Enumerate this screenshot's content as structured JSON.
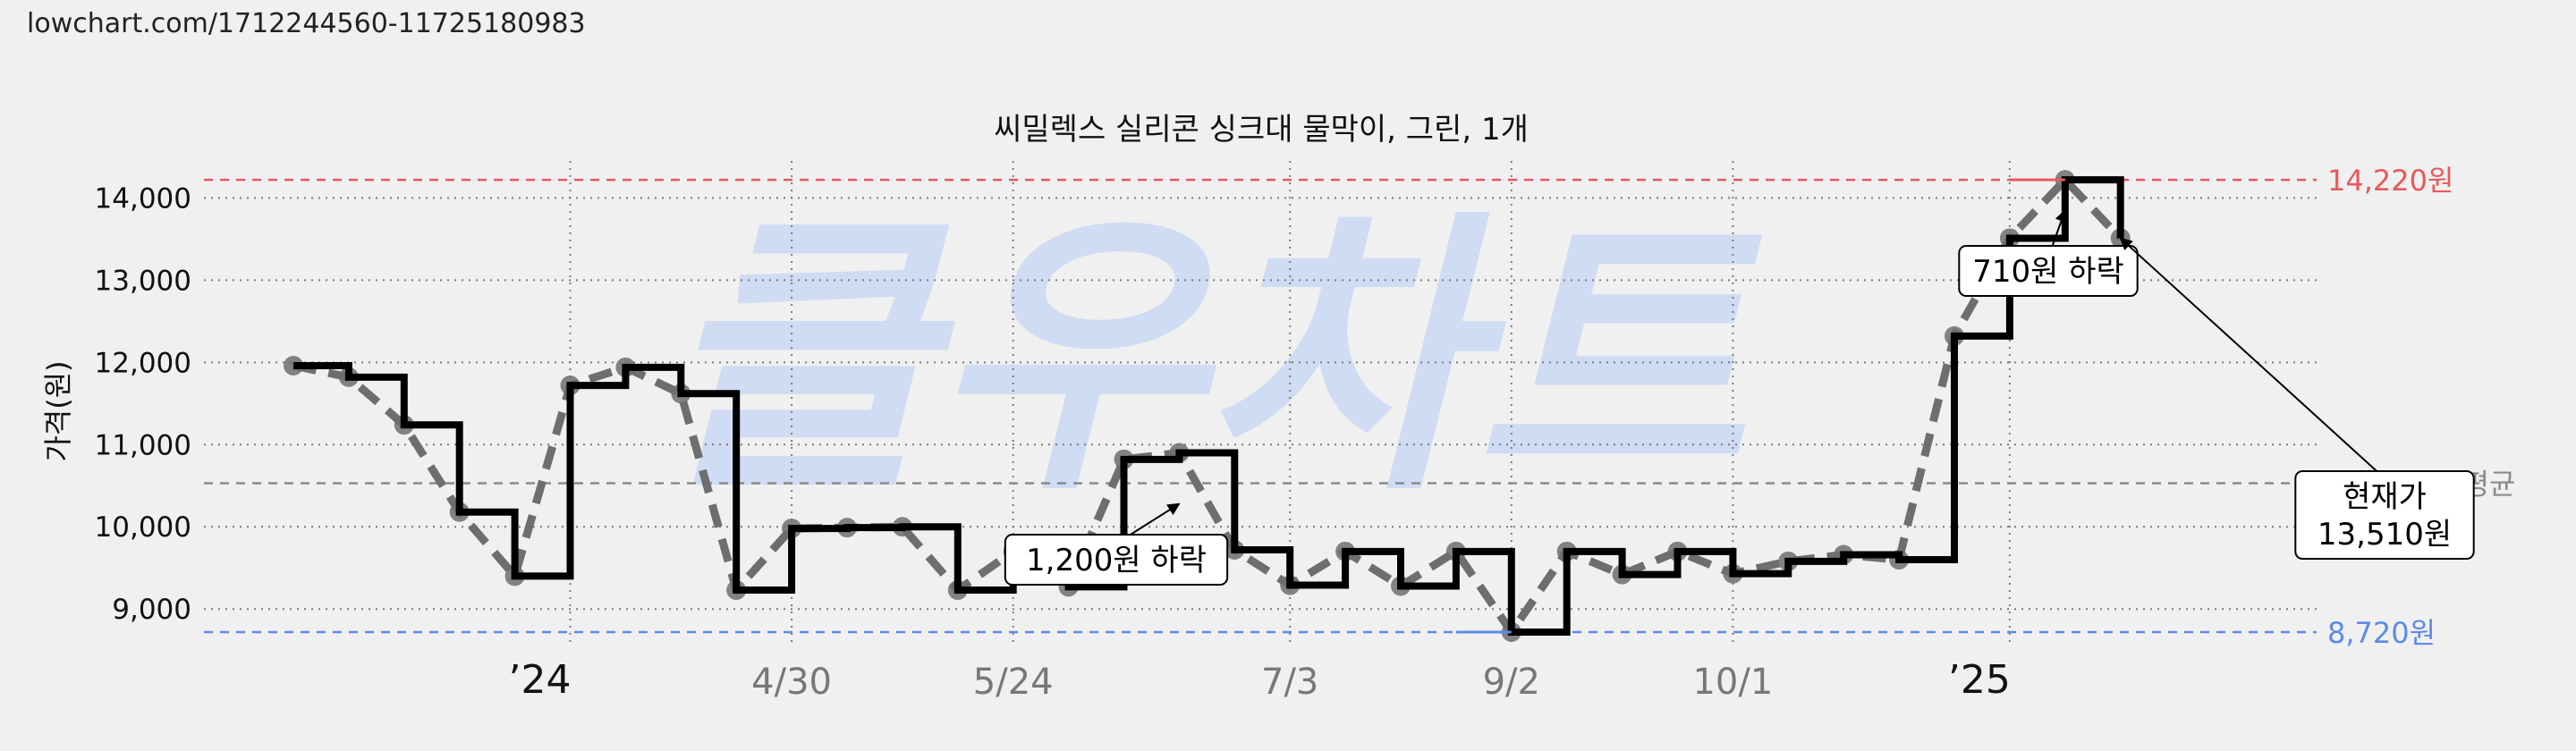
{
  "page": {
    "url_text": "lowchart.com/1712244560-11725180983",
    "watermark": "클우차트"
  },
  "chart_data": {
    "type": "line",
    "title": "씨밀렉스 실리콘 싱크대 물막이, 그린, 1개",
    "ylabel": "가격(원)",
    "xlabel": "",
    "ylim": [
      8600,
      14450
    ],
    "yticks": [
      9000,
      10000,
      11000,
      12000,
      13000,
      14000
    ],
    "ytick_labels": [
      "9,000",
      "10,000",
      "11,000",
      "12,000",
      "13,000",
      "14,000"
    ],
    "xtick_labels": [
      {
        "label": "’24",
        "x": 5,
        "style": "year"
      },
      {
        "label": "4/30",
        "x": 9,
        "style": "date"
      },
      {
        "label": "5/24",
        "x": 13,
        "style": "date"
      },
      {
        "label": "7/3",
        "x": 18,
        "style": "date"
      },
      {
        "label": "9/2",
        "x": 22,
        "style": "date"
      },
      {
        "label": "10/1",
        "x": 26,
        "style": "date"
      },
      {
        "label": "’25",
        "x": 31,
        "style": "year"
      }
    ],
    "grid": true,
    "series": [
      {
        "style": "step",
        "color": "#000000",
        "values": [
          11960,
          11820,
          11240,
          10180,
          9400,
          11720,
          11940,
          11620,
          9230,
          9980,
          9990,
          10000,
          9230,
          9700,
          9270,
          10820,
          10900,
          9720,
          9290,
          9700,
          9280,
          9700,
          8720,
          9700,
          9420,
          9700,
          9430,
          9580,
          9660,
          9600,
          12320,
          13510,
          14220,
          13510
        ]
      },
      {
        "style": "dashed-markers",
        "color": "#6e6e6e",
        "values": [
          11960,
          11820,
          11240,
          10180,
          9400,
          11720,
          11940,
          11620,
          9230,
          9980,
          9990,
          10000,
          9230,
          9700,
          9270,
          10820,
          10900,
          9720,
          9290,
          9700,
          9280,
          9700,
          8720,
          9700,
          9420,
          9700,
          9430,
          9580,
          9660,
          9600,
          12320,
          13510,
          14220,
          13510
        ]
      }
    ],
    "reference_lines": [
      {
        "value": 14220,
        "label": "14,220원",
        "color": "#e8585a",
        "kind": "max"
      },
      {
        "value": 10530,
        "label": "10,530원 평균",
        "color": "#8a8a8a",
        "kind": "avg"
      },
      {
        "value": 8720,
        "label": "8,720원",
        "color": "#5b8be6",
        "kind": "min"
      }
    ],
    "annotations": [
      {
        "lines": [
          "1,200원 하락"
        ],
        "target_index": 16,
        "target_value": 10280
      },
      {
        "lines": [
          "710원 하락"
        ],
        "target_index": 32,
        "target_value": 13850
      },
      {
        "lines": [
          "현재가",
          "13,510원"
        ],
        "target_index": 33,
        "target_value": 13510
      }
    ]
  }
}
